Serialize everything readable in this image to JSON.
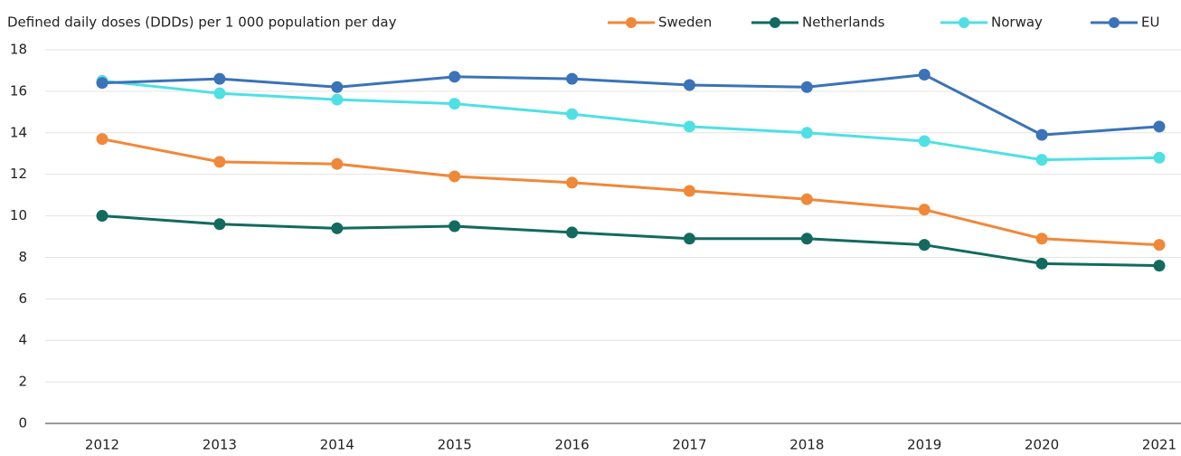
{
  "chart_data": {
    "type": "line",
    "y_axis_label": "Defined daily doses (DDDs) per 1 000 population per day",
    "categories": [
      "2012",
      "2013",
      "2014",
      "2015",
      "2016",
      "2017",
      "2018",
      "2019",
      "2020",
      "2021"
    ],
    "series": [
      {
        "name": "Sweden",
        "color": "#f0883a",
        "values": [
          13.7,
          12.6,
          12.5,
          11.9,
          11.6,
          11.2,
          10.8,
          10.3,
          8.9,
          8.6
        ]
      },
      {
        "name": "Netherlands",
        "color": "#136a5e",
        "values": [
          10.0,
          9.6,
          9.4,
          9.5,
          9.2,
          8.9,
          8.9,
          8.6,
          7.7,
          7.6
        ]
      },
      {
        "name": "Norway",
        "color": "#4fe0e4",
        "values": [
          16.5,
          15.9,
          15.6,
          15.4,
          14.9,
          14.3,
          14.0,
          13.6,
          12.7,
          12.8
        ]
      },
      {
        "name": "EU",
        "color": "#3a73b8",
        "values": [
          16.4,
          16.6,
          16.2,
          16.7,
          16.6,
          16.3,
          16.2,
          16.8,
          13.9,
          14.3
        ]
      }
    ],
    "ylim": [
      0,
      18
    ],
    "yticks": [
      0,
      2,
      4,
      6,
      8,
      10,
      12,
      14,
      16,
      18
    ],
    "grid": true,
    "legend": "top-right"
  }
}
